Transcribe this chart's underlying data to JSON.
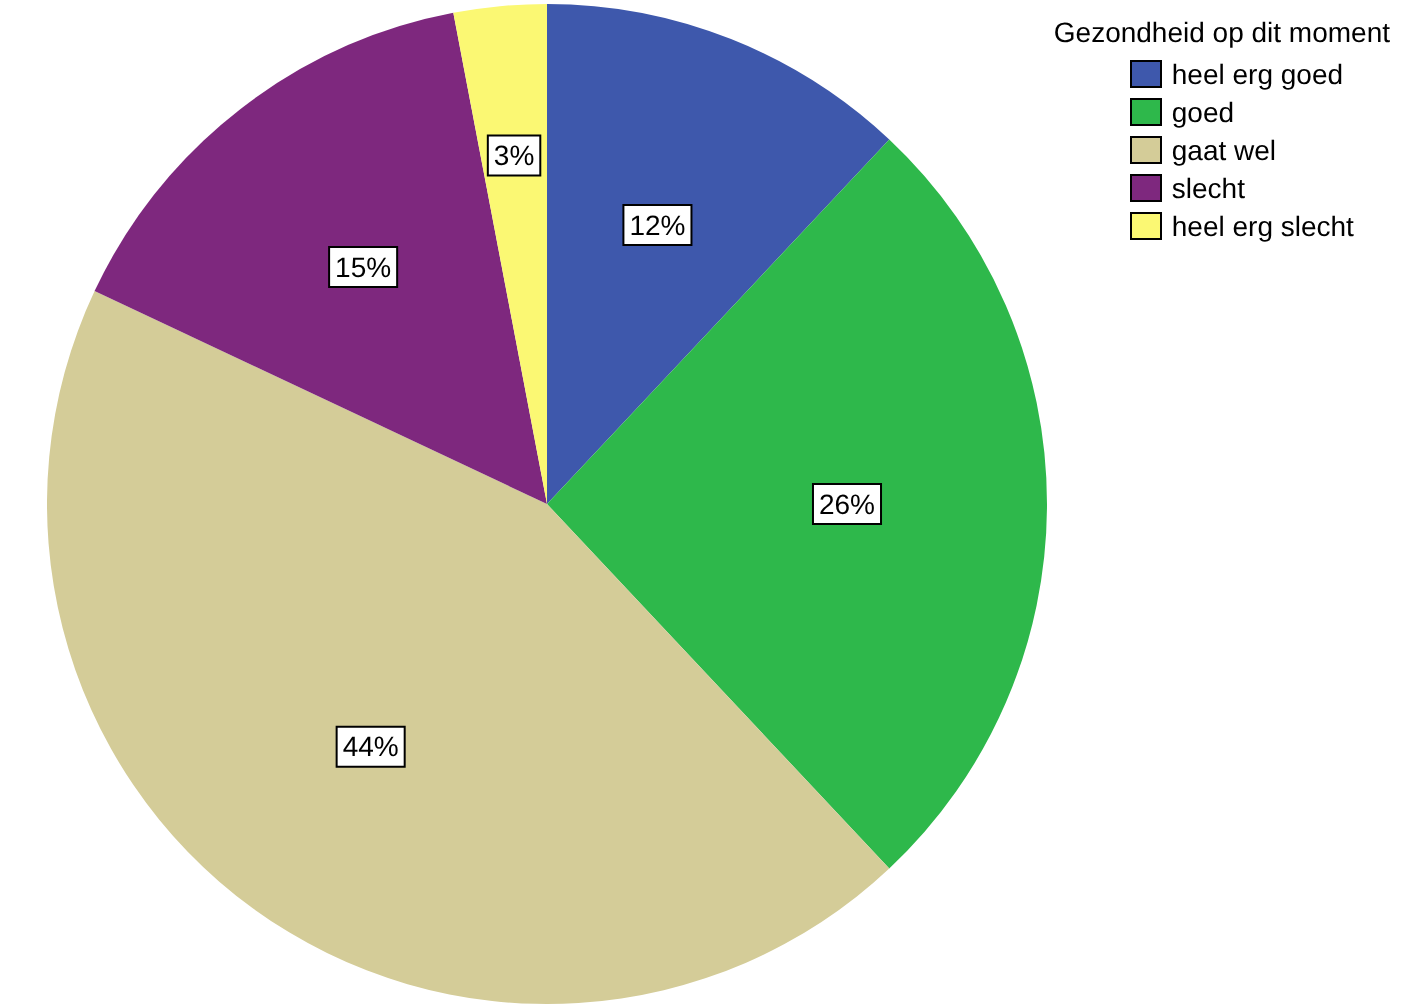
{
  "chart_data": {
    "type": "pie",
    "legend_title": "Gezondheid op dit moment",
    "legend": "top right",
    "categories": [
      "heel erg goed",
      "goed",
      "gaat wel",
      "slecht",
      "heel erg slecht"
    ],
    "values": [
      12,
      26,
      44,
      15,
      3
    ],
    "value_labels": [
      "12%",
      "26%",
      "44%",
      "15%",
      "3%"
    ],
    "colors": [
      "#3e58ac",
      "#2eb84b",
      "#d4cc98",
      "#7e287e",
      "#fbf873"
    ]
  }
}
